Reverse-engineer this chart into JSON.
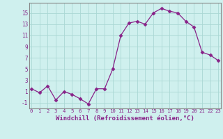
{
  "x": [
    0,
    1,
    2,
    3,
    4,
    5,
    6,
    7,
    8,
    9,
    10,
    11,
    12,
    13,
    14,
    15,
    16,
    17,
    18,
    19,
    20,
    21,
    22,
    23
  ],
  "y": [
    1.5,
    0.8,
    2.0,
    -0.5,
    1.0,
    0.5,
    -0.3,
    -1.2,
    1.5,
    1.5,
    5.0,
    11.0,
    13.2,
    13.5,
    13.0,
    15.0,
    15.8,
    15.3,
    15.0,
    13.5,
    12.5,
    8.0,
    7.5,
    6.5
  ],
  "line_color": "#882288",
  "marker": "D",
  "marker_size": 2.5,
  "bg_color": "#cff0ee",
  "grid_color": "#aad8d4",
  "xlabel": "Windchill (Refroidissement éolien,°C)",
  "xlabel_fontsize": 6.5,
  "ytick_labels": [
    "-1",
    "1",
    "3",
    "5",
    "7",
    "9",
    "11",
    "13",
    "15"
  ],
  "ytick_vals": [
    -1,
    1,
    3,
    5,
    7,
    9,
    11,
    13,
    15
  ],
  "xtick_vals": [
    0,
    1,
    2,
    3,
    4,
    5,
    6,
    7,
    8,
    9,
    10,
    11,
    12,
    13,
    14,
    15,
    16,
    17,
    18,
    19,
    20,
    21,
    22,
    23
  ],
  "ylim": [
    -2.0,
    16.8
  ],
  "xlim": [
    -0.3,
    23.3
  ]
}
